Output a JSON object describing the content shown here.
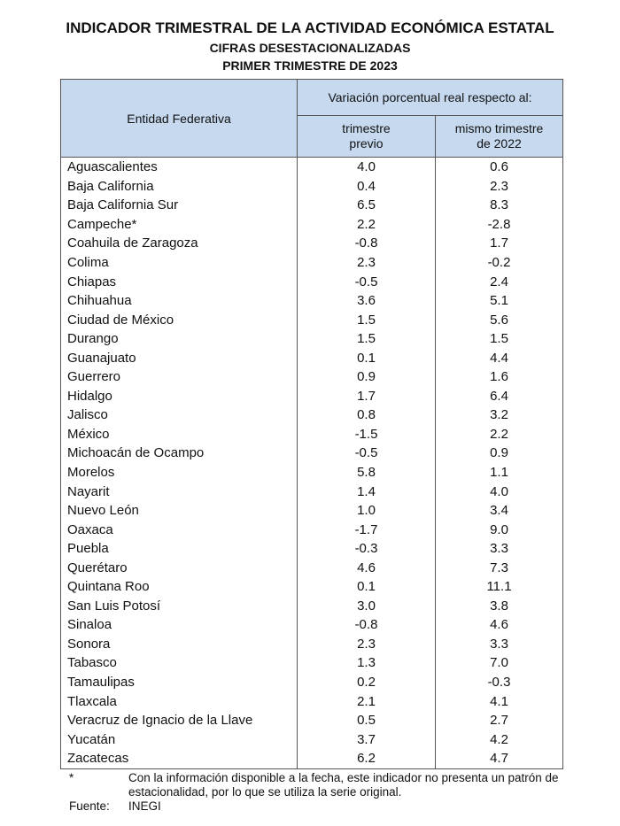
{
  "header": {
    "title": "INDICADOR TRIMESTRAL DE LA ACTIVIDAD ECONÓMICA ESTATAL",
    "subtitle": "CIFRAS DESESTACIONALIZADAS",
    "period": "PRIMER TRIMESTRE DE 2023"
  },
  "table": {
    "columns": {
      "entity": "Entidad Federativa",
      "group": "Variación porcentual real respecto al:",
      "previous": [
        "trimestre",
        "previo"
      ],
      "same_quarter": [
        "mismo trimestre",
        "de 2022"
      ]
    },
    "rows": [
      [
        "Aguascalientes",
        "4.0",
        "0.6"
      ],
      [
        "Baja California",
        "0.4",
        "2.3"
      ],
      [
        "Baja California Sur",
        "6.5",
        "8.3"
      ],
      [
        "Campeche*",
        "2.2",
        "-2.8"
      ],
      [
        "Coahuila de Zaragoza",
        "-0.8",
        "1.7"
      ],
      [
        "Colima",
        "2.3",
        "-0.2"
      ],
      [
        "Chiapas",
        "-0.5",
        "2.4"
      ],
      [
        "Chihuahua",
        "3.6",
        "5.1"
      ],
      [
        "Ciudad de México",
        "1.5",
        "5.6"
      ],
      [
        "Durango",
        "1.5",
        "1.5"
      ],
      [
        "Guanajuato",
        "0.1",
        "4.4"
      ],
      [
        "Guerrero",
        "0.9",
        "1.6"
      ],
      [
        "Hidalgo",
        "1.7",
        "6.4"
      ],
      [
        "Jalisco",
        "0.8",
        "3.2"
      ],
      [
        "México",
        "-1.5",
        "2.2"
      ],
      [
        "Michoacán de Ocampo",
        "-0.5",
        "0.9"
      ],
      [
        "Morelos",
        "5.8",
        "1.1"
      ],
      [
        "Nayarit",
        "1.4",
        "4.0"
      ],
      [
        "Nuevo León",
        "1.0",
        "3.4"
      ],
      [
        "Oaxaca",
        "-1.7",
        "9.0"
      ],
      [
        "Puebla",
        "-0.3",
        "3.3"
      ],
      [
        "Querétaro",
        "4.6",
        "7.3"
      ],
      [
        "Quintana Roo",
        "0.1",
        "11.1"
      ],
      [
        "San Luis Potosí",
        "3.0",
        "3.8"
      ],
      [
        "Sinaloa",
        "-0.8",
        "4.6"
      ],
      [
        "Sonora",
        "2.3",
        "3.3"
      ],
      [
        "Tabasco",
        "1.3",
        "7.0"
      ],
      [
        "Tamaulipas",
        "0.2",
        "-0.3"
      ],
      [
        "Tlaxcala",
        "2.1",
        "4.1"
      ],
      [
        "Veracruz de Ignacio de la Llave",
        "0.5",
        "2.7"
      ],
      [
        "Yucatán",
        "3.7",
        "4.2"
      ],
      [
        "Zacatecas",
        "6.2",
        "4.7"
      ]
    ]
  },
  "notes": {
    "marker": "*",
    "text": "Con la información disponible a la fecha, este indicador no presenta un patrón de estacionalidad, por lo que se utiliza la serie original.",
    "source_label": "Fuente:",
    "source": "INEGI"
  }
}
